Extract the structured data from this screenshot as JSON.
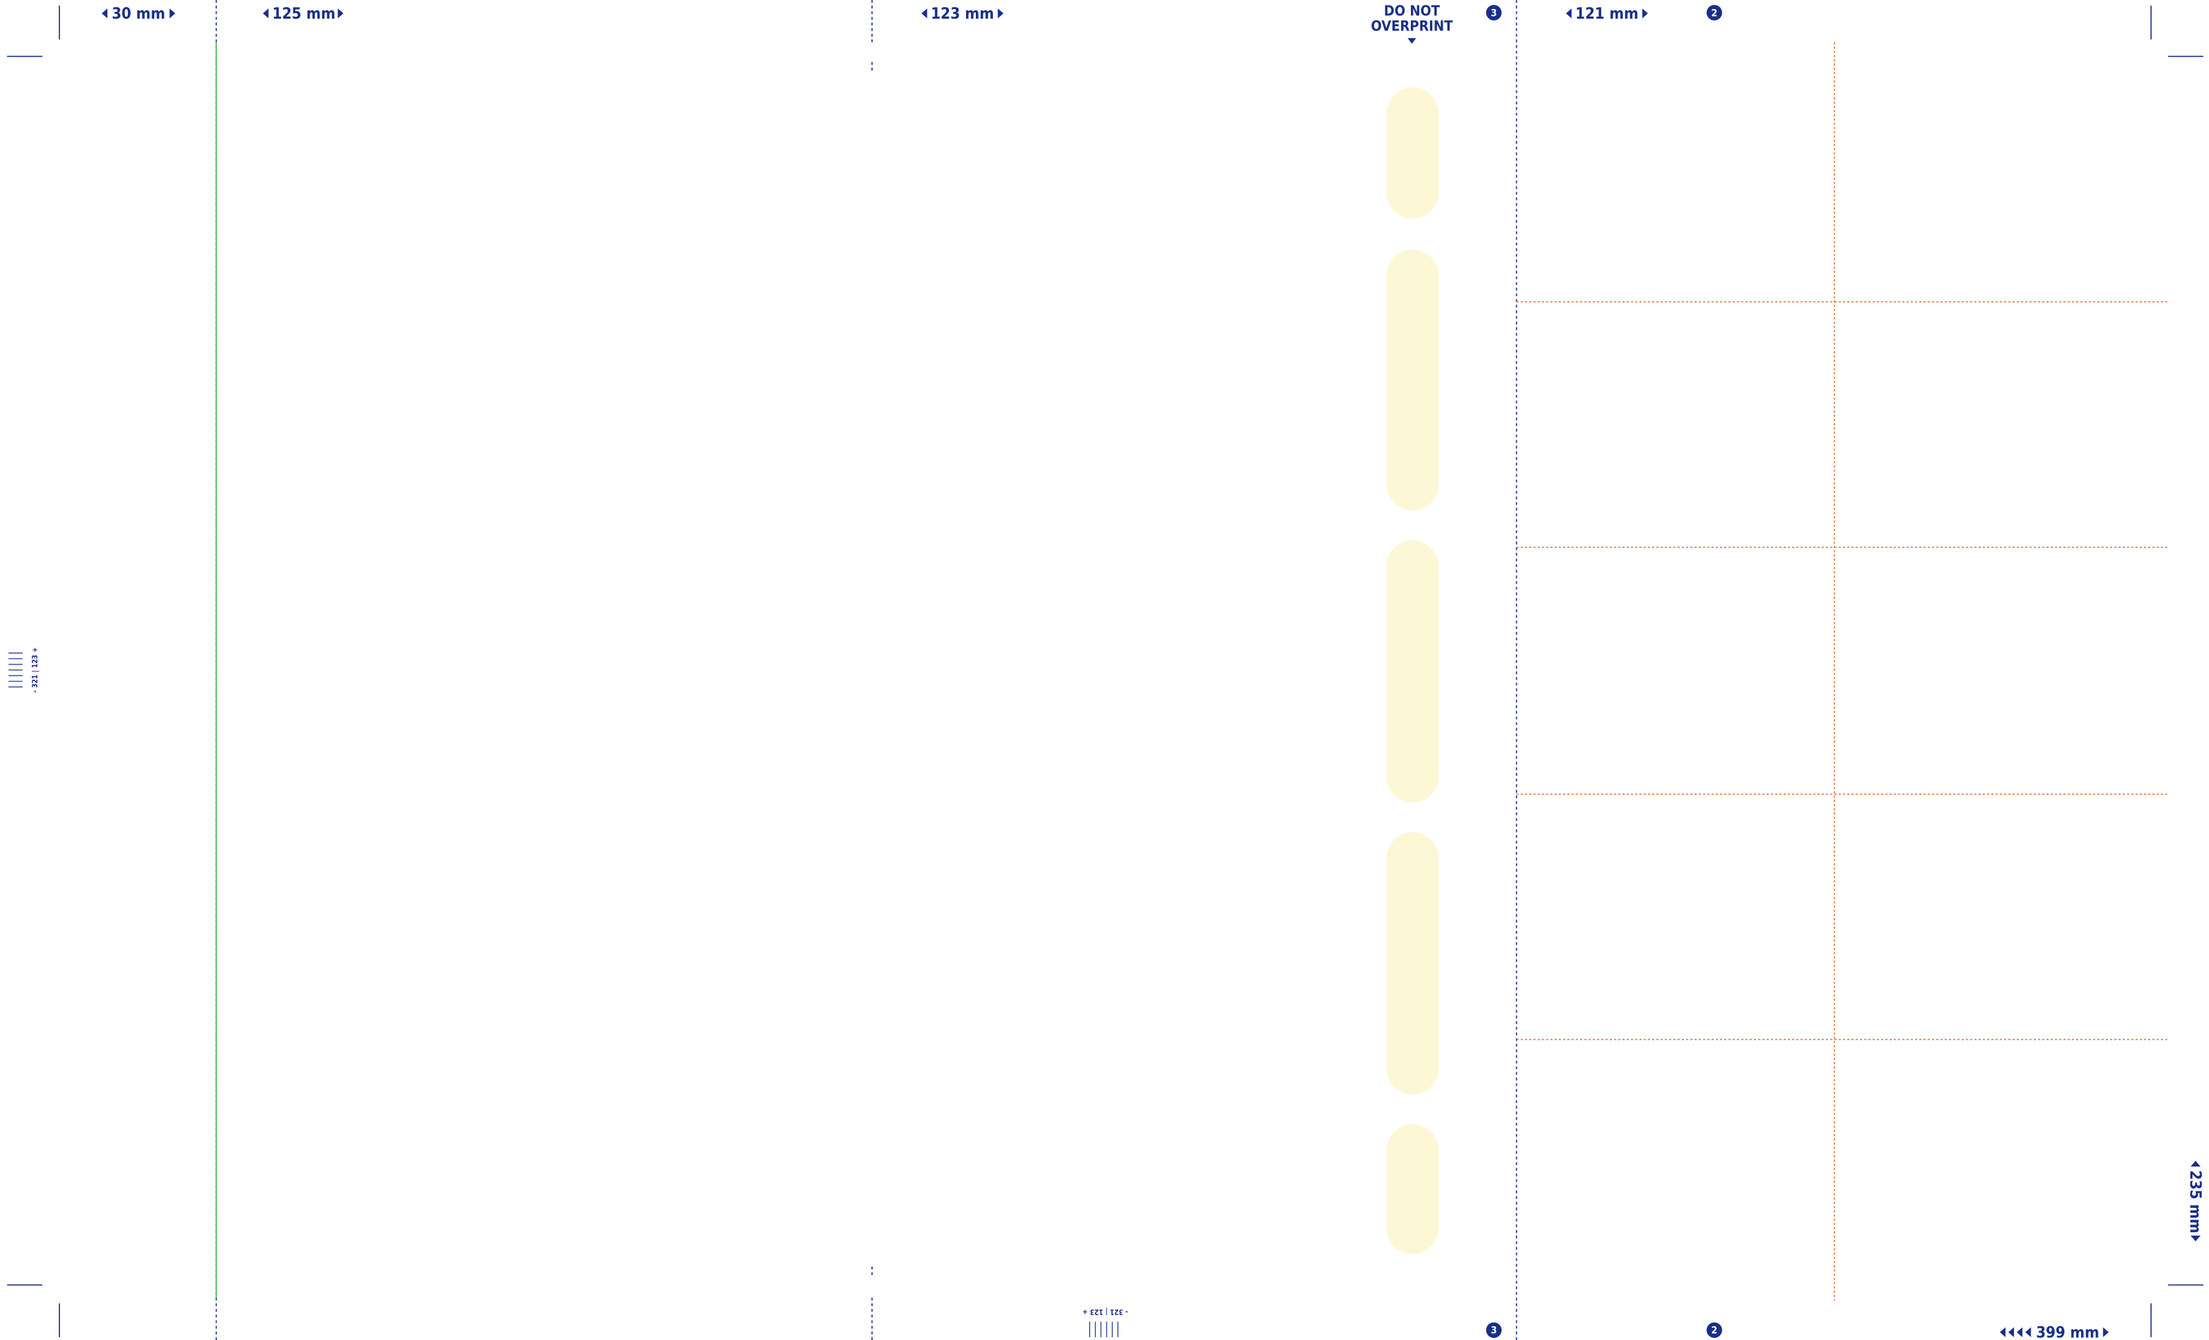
{
  "dimensions": {
    "flap": "30 mm",
    "back": "125 mm",
    "front": "123 mm",
    "inside": "121 mm",
    "total_width": "399 mm",
    "height": "235 mm"
  },
  "warning": {
    "line1": "DO NOT",
    "line2": "OVERPRINT"
  },
  "panel_numbers": {
    "top_left": "3",
    "top_right": "2",
    "bottom_left": "3",
    "bottom_right": "2"
  },
  "scale_marks": {
    "side": "- 321 | 123 +",
    "bottom": "- 321 | 123 +"
  }
}
